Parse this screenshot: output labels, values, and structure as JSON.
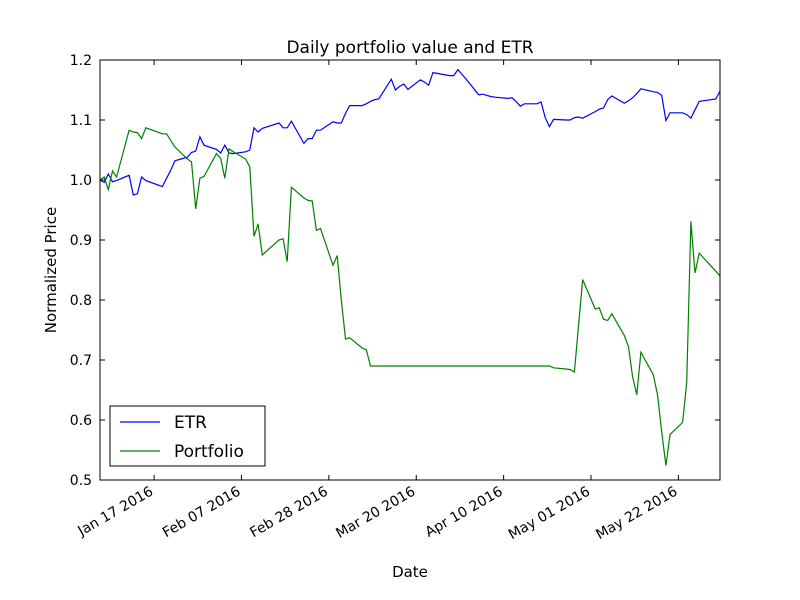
{
  "chart_data": {
    "type": "line",
    "title": "Daily portfolio value and ETR",
    "xlabel": "Date",
    "ylabel": "Normalized Price",
    "x_range": [
      "2016-01-04",
      "2016-06-01"
    ],
    "ylim": [
      0.5,
      1.2
    ],
    "yticks": [
      0.5,
      0.6,
      0.7,
      0.8,
      0.9,
      1.0,
      1.1,
      1.2
    ],
    "ytick_labels": [
      "0.5",
      "0.6",
      "0.7",
      "0.8",
      "0.9",
      "1.0",
      "1.1",
      "1.2"
    ],
    "xticks": [
      "2016-01-17",
      "2016-02-07",
      "2016-02-28",
      "2016-03-20",
      "2016-04-10",
      "2016-05-01",
      "2016-05-22"
    ],
    "xtick_labels": [
      "Jan 17 2016",
      "Feb 07 2016",
      "Feb 28 2016",
      "Mar 20 2016",
      "Apr 10 2016",
      "May 01 2016",
      "May 22 2016"
    ],
    "grid": false,
    "legend_position": "bottom-left",
    "series": [
      {
        "name": "ETR",
        "color": "#0000ff",
        "x": [
          "2016-01-04",
          "2016-01-05",
          "2016-01-06",
          "2016-01-07",
          "2016-01-08",
          "2016-01-11",
          "2016-01-12",
          "2016-01-13",
          "2016-01-14",
          "2016-01-15",
          "2016-01-19",
          "2016-01-20",
          "2016-01-21",
          "2016-01-22",
          "2016-01-25",
          "2016-01-26",
          "2016-01-27",
          "2016-01-28",
          "2016-01-29",
          "2016-02-01",
          "2016-02-02",
          "2016-02-03",
          "2016-02-04",
          "2016-02-05",
          "2016-02-08",
          "2016-02-09",
          "2016-02-10",
          "2016-02-11",
          "2016-02-12",
          "2016-02-16",
          "2016-02-17",
          "2016-02-18",
          "2016-02-19",
          "2016-02-22",
          "2016-02-23",
          "2016-02-24",
          "2016-02-25",
          "2016-02-26",
          "2016-02-29",
          "2016-03-01",
          "2016-03-02",
          "2016-03-03",
          "2016-03-04",
          "2016-03-07",
          "2016-03-08",
          "2016-03-09",
          "2016-03-10",
          "2016-03-11",
          "2016-03-14",
          "2016-03-15",
          "2016-03-16",
          "2016-03-17",
          "2016-03-18",
          "2016-03-21",
          "2016-03-22",
          "2016-03-23",
          "2016-03-24",
          "2016-03-28",
          "2016-03-29",
          "2016-03-30",
          "2016-03-31",
          "2016-04-01",
          "2016-04-04",
          "2016-04-05",
          "2016-04-06",
          "2016-04-07",
          "2016-04-08",
          "2016-04-11",
          "2016-04-12",
          "2016-04-13",
          "2016-04-14",
          "2016-04-15",
          "2016-04-18",
          "2016-04-19",
          "2016-04-20",
          "2016-04-21",
          "2016-04-22",
          "2016-04-25",
          "2016-04-26",
          "2016-04-27",
          "2016-04-28",
          "2016-04-29",
          "2016-05-02",
          "2016-05-03",
          "2016-05-04",
          "2016-05-05",
          "2016-05-06",
          "2016-05-09",
          "2016-05-10",
          "2016-05-11",
          "2016-05-12",
          "2016-05-13",
          "2016-05-16",
          "2016-05-17",
          "2016-05-18",
          "2016-05-19",
          "2016-05-20",
          "2016-05-23",
          "2016-05-24",
          "2016-05-25",
          "2016-05-26",
          "2016-05-27",
          "2016-05-31",
          "2016-06-01"
        ],
        "values": [
          1.0,
          0.996,
          1.01,
          0.997,
          0.999,
          1.008,
          0.975,
          0.977,
          1.005,
          0.999,
          0.989,
          1.003,
          1.016,
          1.032,
          1.038,
          1.046,
          1.048,
          1.072,
          1.058,
          1.051,
          1.045,
          1.058,
          1.045,
          1.044,
          1.047,
          1.05,
          1.087,
          1.08,
          1.086,
          1.095,
          1.087,
          1.087,
          1.098,
          1.061,
          1.069,
          1.069,
          1.083,
          1.083,
          1.097,
          1.095,
          1.095,
          1.111,
          1.124,
          1.124,
          1.127,
          1.131,
          1.134,
          1.135,
          1.168,
          1.15,
          1.156,
          1.16,
          1.151,
          1.167,
          1.163,
          1.158,
          1.179,
          1.174,
          1.174,
          1.184,
          1.176,
          1.168,
          1.142,
          1.143,
          1.141,
          1.139,
          1.138,
          1.136,
          1.137,
          1.131,
          1.123,
          1.127,
          1.127,
          1.13,
          1.104,
          1.089,
          1.101,
          1.1,
          1.1,
          1.104,
          1.105,
          1.103,
          1.114,
          1.118,
          1.12,
          1.134,
          1.14,
          1.128,
          1.132,
          1.137,
          1.144,
          1.152,
          1.147,
          1.146,
          1.141,
          1.099,
          1.112,
          1.112,
          1.109,
          1.103,
          1.117,
          1.131,
          1.135,
          1.148
        ]
      },
      {
        "name": "Portfolio",
        "color": "#008000",
        "x": [
          "2016-01-04",
          "2016-01-05",
          "2016-01-06",
          "2016-01-07",
          "2016-01-08",
          "2016-01-11",
          "2016-01-12",
          "2016-01-13",
          "2016-01-14",
          "2016-01-15",
          "2016-01-19",
          "2016-01-20",
          "2016-01-21",
          "2016-01-22",
          "2016-01-25",
          "2016-01-26",
          "2016-01-27",
          "2016-01-28",
          "2016-01-29",
          "2016-02-01",
          "2016-02-02",
          "2016-02-03",
          "2016-02-04",
          "2016-02-05",
          "2016-02-08",
          "2016-02-09",
          "2016-02-10",
          "2016-02-11",
          "2016-02-12",
          "2016-02-16",
          "2016-02-17",
          "2016-02-18",
          "2016-02-19",
          "2016-02-22",
          "2016-02-23",
          "2016-02-24",
          "2016-02-25",
          "2016-02-26",
          "2016-02-29",
          "2016-03-01",
          "2016-03-02",
          "2016-03-03",
          "2016-03-04",
          "2016-03-07",
          "2016-03-08",
          "2016-03-09",
          "2016-03-10",
          "2016-03-11",
          "2016-03-14",
          "2016-03-15",
          "2016-04-21",
          "2016-04-22",
          "2016-04-25",
          "2016-04-26",
          "2016-04-27",
          "2016-04-28",
          "2016-04-29",
          "2016-05-02",
          "2016-05-03",
          "2016-05-04",
          "2016-05-05",
          "2016-05-06",
          "2016-05-09",
          "2016-05-10",
          "2016-05-11",
          "2016-05-12",
          "2016-05-13",
          "2016-05-16",
          "2016-05-17",
          "2016-05-18",
          "2016-05-19",
          "2016-05-20",
          "2016-05-23",
          "2016-05-24",
          "2016-05-25",
          "2016-05-26",
          "2016-05-27",
          "2016-05-31",
          "2016-06-01"
        ],
        "values": [
          1.0,
          1.005,
          0.984,
          1.015,
          1.005,
          1.083,
          1.08,
          1.079,
          1.069,
          1.087,
          1.077,
          1.077,
          1.066,
          1.055,
          1.035,
          1.03,
          0.952,
          1.003,
          1.006,
          1.044,
          1.036,
          1.003,
          1.052,
          1.047,
          1.035,
          1.022,
          0.906,
          0.927,
          0.875,
          0.9,
          0.902,
          0.864,
          0.988,
          0.97,
          0.966,
          0.965,
          0.916,
          0.919,
          0.858,
          0.874,
          0.8,
          0.735,
          0.737,
          0.72,
          0.717,
          0.69,
          0.69,
          0.69,
          0.69,
          0.69,
          0.69,
          0.687,
          0.685,
          0.684,
          0.68,
          0.757,
          0.834,
          0.785,
          0.787,
          0.768,
          0.766,
          0.777,
          0.741,
          0.722,
          0.672,
          0.642,
          0.713,
          0.675,
          0.641,
          0.58,
          0.524,
          0.576,
          0.596,
          0.662,
          0.931,
          0.845,
          0.878,
          0.848,
          0.84
        ]
      }
    ]
  }
}
